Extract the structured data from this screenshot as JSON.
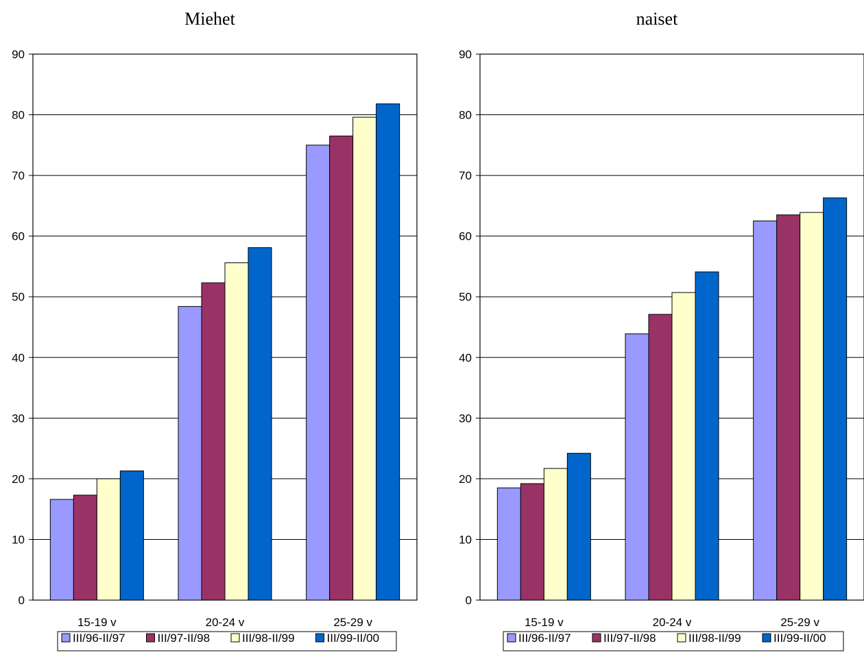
{
  "chart_data": [
    {
      "type": "bar",
      "title": "Miehet",
      "categories": [
        "15-19 v",
        "20-24 v",
        "25-29 v"
      ],
      "series": [
        {
          "name": "III/96-II/97",
          "values": [
            16.6,
            48.4,
            75.0
          ]
        },
        {
          "name": "III/97-II/98",
          "values": [
            17.3,
            52.3,
            76.5
          ]
        },
        {
          "name": "III/98-II/99",
          "values": [
            20.0,
            55.6,
            79.6
          ]
        },
        {
          "name": "III/99-II/00",
          "values": [
            21.3,
            58.1,
            81.8
          ]
        }
      ],
      "ylim": [
        0,
        90
      ],
      "yticks": [
        0,
        10,
        20,
        30,
        40,
        50,
        60,
        70,
        80,
        90
      ],
      "grid": true,
      "legend": "bottom"
    },
    {
      "type": "bar",
      "title": "naiset",
      "categories": [
        "15-19 v",
        "20-24 v",
        "25-29 v"
      ],
      "series": [
        {
          "name": "III/96-II/97",
          "values": [
            18.5,
            43.9,
            62.5
          ]
        },
        {
          "name": "III/97-II/98",
          "values": [
            19.2,
            47.1,
            63.5
          ]
        },
        {
          "name": "III/98-II/99",
          "values": [
            21.7,
            50.7,
            63.9
          ]
        },
        {
          "name": "III/99-II/00",
          "values": [
            24.2,
            54.1,
            66.3
          ]
        }
      ],
      "ylim": [
        0,
        90
      ],
      "yticks": [
        0,
        10,
        20,
        30,
        40,
        50,
        60,
        70,
        80,
        90
      ],
      "grid": true,
      "legend": "bottom"
    }
  ],
  "series_colors": [
    "#9999ff",
    "#993366",
    "#ffffcc",
    "#0066cc"
  ]
}
